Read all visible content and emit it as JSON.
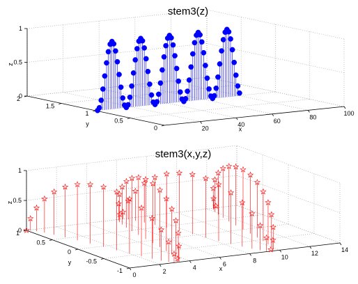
{
  "chart_data": [
    {
      "type": "stem3",
      "title": "stem3(z)",
      "xlabel": "x",
      "ylabel": "y",
      "zlabel": "z",
      "xlim": [
        0,
        100
      ],
      "ylim": [
        0,
        2
      ],
      "zlim": [
        0,
        1
      ],
      "xticks": [
        "20",
        "40",
        "60",
        "80",
        "100"
      ],
      "yticks": [
        "0",
        "0.5",
        "1",
        "1.5",
        "2"
      ],
      "zticks": [
        "0",
        "0.5",
        "1"
      ],
      "grid": true,
      "marker": "filled-circle",
      "color": "#0000ff",
      "series": [
        {
          "x": [
            1,
            2,
            3,
            4,
            5,
            6,
            7,
            8,
            9,
            10,
            11,
            12,
            13,
            14,
            15,
            16,
            17,
            18,
            19,
            20,
            21,
            22,
            23,
            24,
            25,
            26,
            27,
            28,
            29,
            30,
            31,
            32,
            33,
            34,
            35,
            36,
            37,
            38,
            39,
            40,
            41,
            42,
            43,
            44,
            45,
            46,
            47,
            48,
            49,
            50,
            51,
            52,
            53,
            54,
            55,
            56,
            57,
            58,
            59,
            60,
            61,
            62,
            63,
            64,
            65,
            66,
            67,
            68,
            69,
            70,
            71,
            72,
            73,
            74,
            75,
            76,
            77,
            78,
            79,
            80
          ],
          "y": [
            1,
            1,
            1,
            1,
            1,
            1,
            1,
            1,
            1,
            1,
            1,
            1,
            1,
            1,
            1,
            1,
            1,
            1,
            1,
            1,
            1,
            1,
            1,
            1,
            1,
            1,
            1,
            1,
            1,
            1,
            1,
            1,
            1,
            1,
            1,
            1,
            1,
            1,
            1,
            1,
            1,
            1,
            1,
            1,
            1,
            1,
            1,
            1,
            1,
            1,
            1,
            1,
            1,
            1,
            1,
            1,
            1,
            1,
            1,
            1,
            1,
            1,
            1,
            1,
            1,
            1,
            1,
            1,
            1,
            1,
            1,
            1,
            1,
            1,
            1,
            1,
            1,
            1,
            1,
            1
          ],
          "z": [
            0.0,
            0.038,
            0.146,
            0.309,
            0.5,
            0.691,
            0.854,
            0.962,
            1.0,
            0.962,
            0.854,
            0.691,
            0.5,
            0.309,
            0.146,
            0.038,
            0.0,
            0.038,
            0.146,
            0.309,
            0.5,
            0.691,
            0.854,
            0.962,
            1.0,
            0.962,
            0.854,
            0.691,
            0.5,
            0.309,
            0.146,
            0.038,
            0.0,
            0.038,
            0.146,
            0.309,
            0.5,
            0.691,
            0.854,
            0.962,
            1.0,
            0.962,
            0.854,
            0.691,
            0.5,
            0.309,
            0.146,
            0.038,
            0.0,
            0.038,
            0.146,
            0.309,
            0.5,
            0.691,
            0.854,
            0.962,
            1.0,
            0.962,
            0.854,
            0.691,
            0.5,
            0.309,
            0.146,
            0.038,
            0.0,
            0.038,
            0.146,
            0.309,
            0.5,
            0.691,
            0.854,
            0.962,
            1.0,
            0.962,
            0.854,
            0.691,
            0.5,
            0.309,
            0.146,
            0.038
          ]
        }
      ]
    },
    {
      "type": "stem3",
      "title": "stem3(x,y,z)",
      "xlabel": "x",
      "ylabel": "y",
      "zlabel": "z",
      "xlim": [
        0,
        14
      ],
      "ylim": [
        -1,
        1
      ],
      "zlim": [
        0,
        1
      ],
      "xticks": [
        "0",
        "2",
        "4",
        "6",
        "8",
        "10",
        "12",
        "14"
      ],
      "yticks": [
        "-1",
        "-0.5",
        "0",
        "0.5",
        "1"
      ],
      "zticks": [
        "0",
        "0.5",
        "1"
      ],
      "grid": true,
      "marker": "pentagram",
      "color": "#ff0000",
      "series": [
        {
          "x": [
            0.0,
            0.2,
            0.4,
            0.6,
            0.8,
            1.0,
            1.2,
            1.4,
            1.6,
            1.8,
            2.0,
            2.2,
            2.4,
            2.6,
            2.8,
            3.0,
            3.2,
            3.4,
            3.6,
            3.8,
            4.0,
            4.2,
            4.4,
            4.6,
            4.8,
            5.0,
            5.2,
            5.4,
            5.6,
            5.8,
            6.0,
            6.2,
            6.4,
            6.6,
            6.8,
            7.0,
            7.2,
            7.4,
            7.6,
            7.8,
            8.0,
            8.2,
            8.4,
            8.6,
            8.8,
            9.0,
            9.2,
            9.4,
            9.6,
            9.8,
            10.0,
            10.2,
            10.4,
            10.6,
            10.8,
            11.0,
            11.2,
            11.4,
            11.6,
            11.8,
            12.0,
            12.2,
            12.4,
            12.6
          ],
          "y": [
            1.0,
            0.98,
            0.921,
            0.825,
            0.697,
            0.54,
            0.362,
            0.17,
            -0.029,
            -0.227,
            -0.416,
            -0.589,
            -0.737,
            -0.857,
            -0.942,
            -0.99,
            -0.998,
            -0.967,
            -0.897,
            -0.791,
            -0.654,
            -0.49,
            -0.307,
            -0.112,
            0.087,
            0.284,
            0.469,
            0.635,
            0.776,
            0.886,
            0.96,
            0.997,
            0.993,
            0.95,
            0.869,
            0.754,
            0.608,
            0.438,
            0.25,
            0.054,
            -0.146,
            -0.339,
            -0.519,
            -0.68,
            -0.811,
            -0.911,
            -0.975,
            -1.0,
            -0.984,
            -0.93,
            -0.839,
            -0.715,
            -0.562,
            -0.388,
            -0.197,
            0.004,
            0.203,
            0.394,
            0.568,
            0.719,
            0.843,
            0.932,
            0.984,
            1.0
          ],
          "z": [
            0.0,
            0.199,
            0.389,
            0.565,
            0.717,
            0.841,
            0.932,
            0.985,
            1.0,
            0.974,
            0.909,
            0.808,
            0.675,
            0.516,
            0.335,
            0.141,
            0.058,
            0.256,
            0.443,
            0.612,
            0.757,
            0.872,
            0.952,
            0.994,
            0.996,
            0.959,
            0.883,
            0.773,
            0.631,
            0.465,
            0.279,
            0.083,
            0.117,
            0.312,
            0.494,
            0.657,
            0.794,
            0.899,
            0.968,
            0.999,
            0.989,
            0.941,
            0.855,
            0.734,
            0.585,
            0.412,
            0.223,
            0.025,
            0.174,
            0.366,
            0.544,
            0.699,
            0.827,
            0.922,
            0.98,
            1.0,
            0.979,
            0.92,
            0.824,
            0.696,
            0.537,
            0.359,
            0.166,
            0.033
          ]
        }
      ]
    }
  ]
}
